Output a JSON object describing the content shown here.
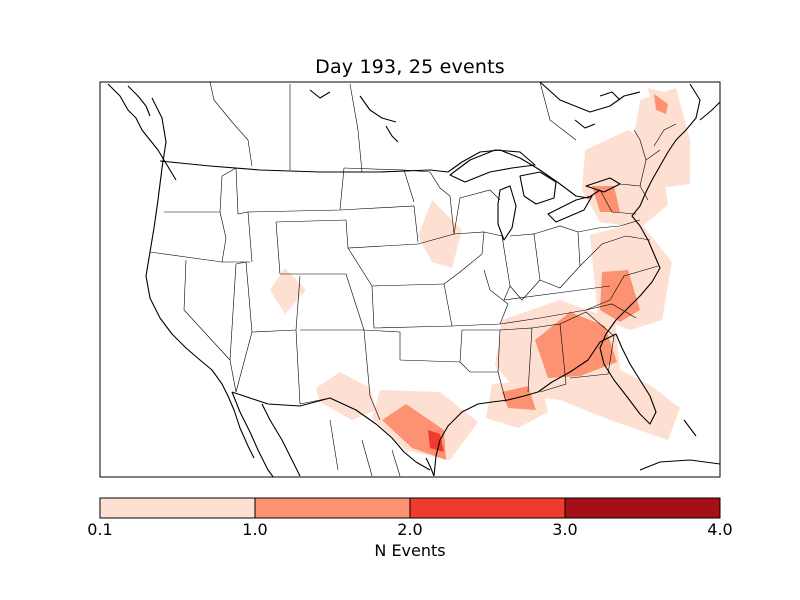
{
  "title": "Day 193, 25 events",
  "colorbar": {
    "label": "N Events",
    "ticks": [
      "0.1",
      "1.0",
      "2.0",
      "3.0",
      "4.0"
    ],
    "bins": [
      {
        "range": "0.1-1.0",
        "color": "#fee0d2"
      },
      {
        "range": "1.0-2.0",
        "color": "#fc9272"
      },
      {
        "range": "2.0-3.0",
        "color": "#ef3b2c"
      },
      {
        "range": "3.0-4.0",
        "color": "#a50f15"
      }
    ]
  },
  "map": {
    "region": "continental United States",
    "projection": "lambert-conformal",
    "features": [
      "coastlines",
      "country-borders",
      "state-borders"
    ]
  }
}
